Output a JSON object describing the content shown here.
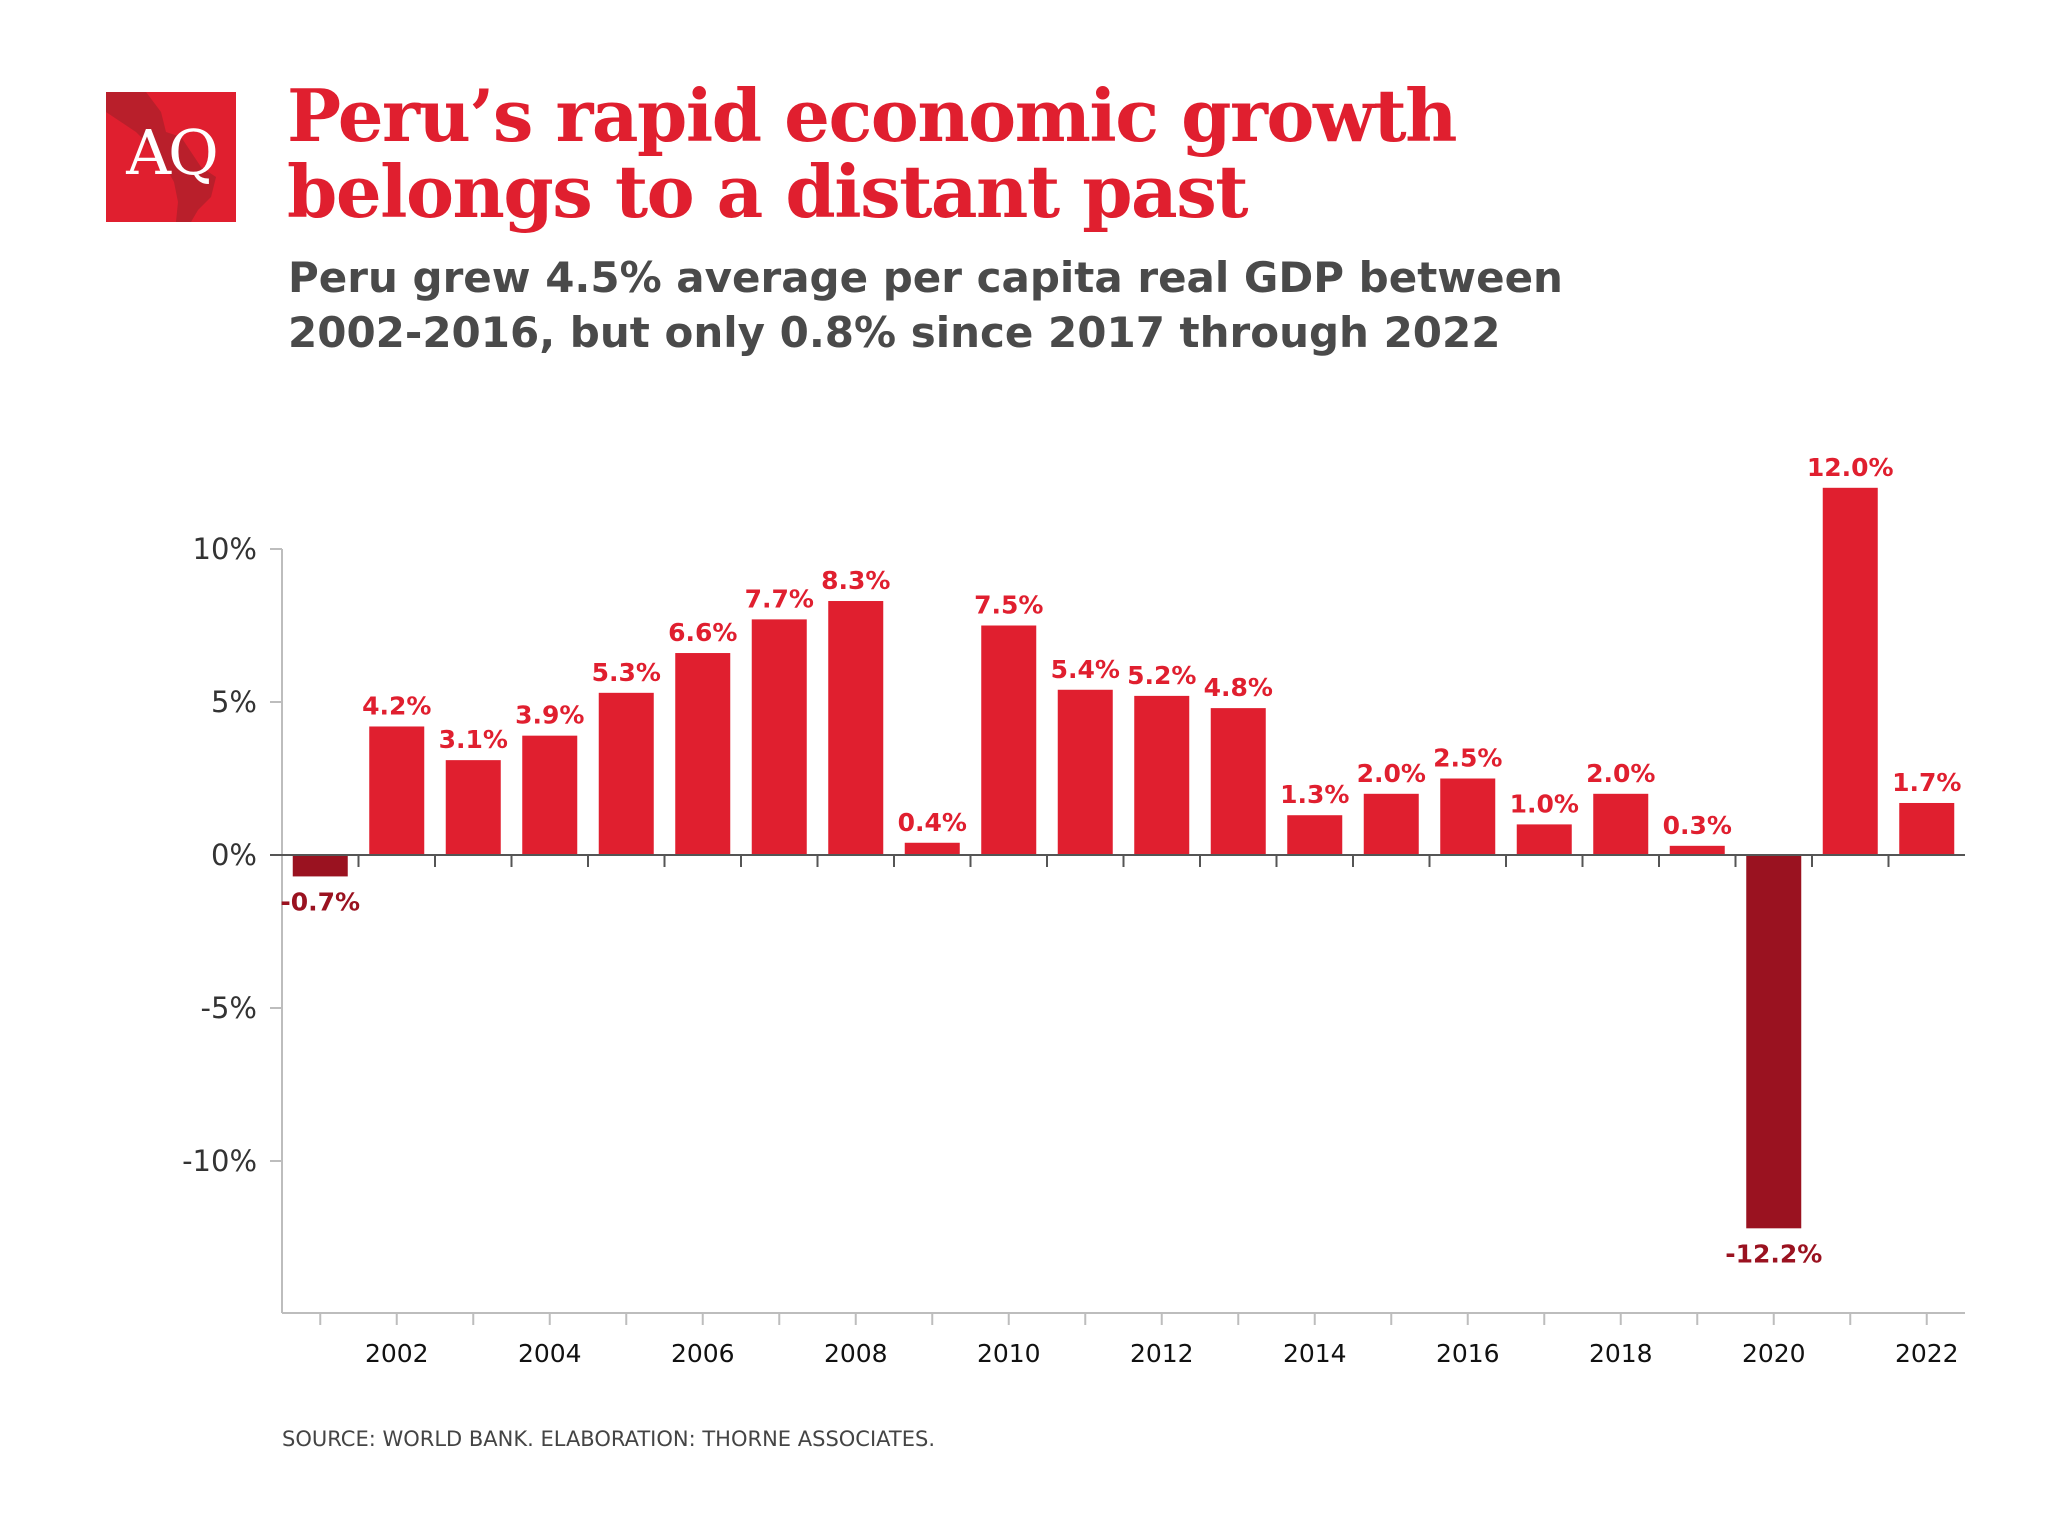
{
  "logo": {
    "text": "AQ"
  },
  "title": "Peru’s rapid economic growth belongs to a distant past",
  "subtitle": "Peru grew 4.5% average per capita real GDP between 2002-2016, but only 0.8% since 2017 through 2022",
  "source": "SOURCE: WORLD BANK. ELABORATION: THORNE ASSOCIATES.",
  "colors": {
    "positive": "#e01f2f",
    "negative": "#9a1220",
    "axis": "#bdbdbd",
    "text": "#333333"
  },
  "chart_data": {
    "type": "bar",
    "categories": [
      "2001",
      "2002",
      "2003",
      "2004",
      "2005",
      "2006",
      "2007",
      "2008",
      "2009",
      "2010",
      "2011",
      "2012",
      "2013",
      "2014",
      "2015",
      "2016",
      "2017",
      "2018",
      "2019",
      "2020",
      "2021",
      "2022"
    ],
    "values": [
      -0.7,
      4.2,
      3.1,
      3.9,
      5.3,
      6.6,
      7.7,
      8.3,
      0.4,
      7.5,
      5.4,
      5.2,
      4.8,
      1.3,
      2.0,
      2.5,
      1.0,
      2.0,
      0.3,
      -12.2,
      12.0,
      1.7
    ],
    "data_labels": [
      "-0.7%",
      "4.2%",
      "3.1%",
      "3.9%",
      "5.3%",
      "6.6%",
      "7.7%",
      "8.3%",
      "0.4%",
      "7.5%",
      "5.4%",
      "5.2%",
      "4.8%",
      "1.3%",
      "2.0%",
      "2.5%",
      "1.0%",
      "2.0%",
      "0.3%",
      "-12.2%",
      "12.0%",
      "1.7%"
    ],
    "x_tick_labels": [
      "2002",
      "2004",
      "2006",
      "2008",
      "2010",
      "2012",
      "2014",
      "2016",
      "2018",
      "2020",
      "2022"
    ],
    "y_ticks": [
      10,
      5,
      0,
      -5,
      -10
    ],
    "y_tick_labels": [
      "10%",
      "5%",
      "0%",
      "-5%",
      "-10%"
    ],
    "ylim": [
      -15,
      10
    ],
    "grid": false,
    "title": "",
    "xlabel": "",
    "ylabel": ""
  }
}
